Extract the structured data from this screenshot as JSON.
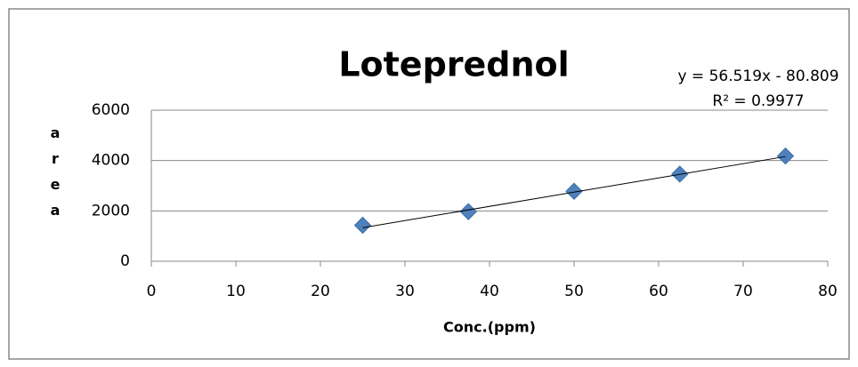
{
  "chart_data": {
    "type": "scatter",
    "title": "Loteprednol",
    "x_label": "Conc.(ppm)",
    "y_label": "area",
    "x": [
      25,
      37.5,
      50,
      62.5,
      75
    ],
    "values": [
      1430,
      1970,
      2780,
      3460,
      4180
    ],
    "color": "#4f81bd",
    "xlim": [
      0,
      80
    ],
    "xticks": [
      0,
      10,
      20,
      30,
      40,
      50,
      60,
      70,
      80
    ],
    "ylim": [
      0,
      6000
    ],
    "yticks": [
      0,
      2000,
      4000,
      6000
    ],
    "grid": true,
    "trendline": {
      "slope": 56.519,
      "intercept": -80.809,
      "equation": "y = 56.519x - 80.809",
      "r_squared": "R² = 0.9977"
    }
  }
}
